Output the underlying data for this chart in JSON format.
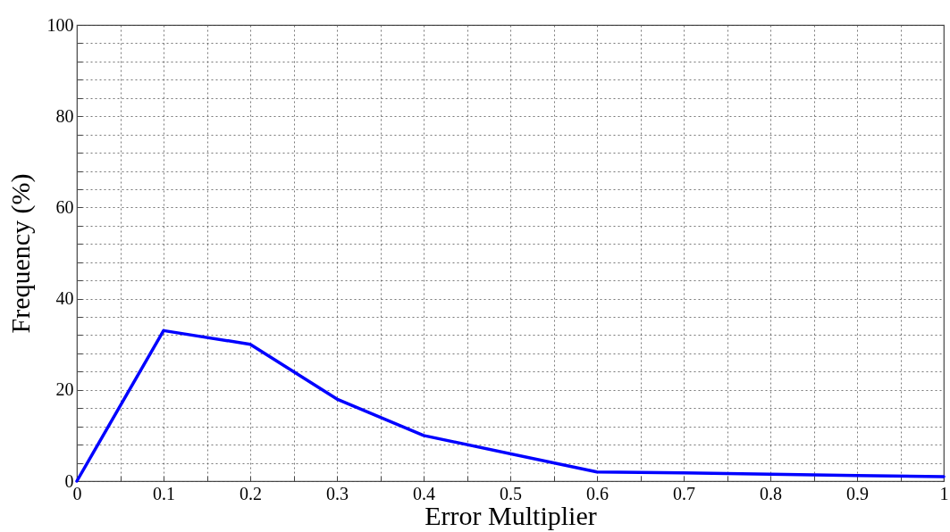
{
  "chart_data": {
    "type": "line",
    "xlabel": "Error Multiplier",
    "ylabel": "Frequency (%)",
    "x": [
      0,
      0.1,
      0.2,
      0.3,
      0.4,
      0.6,
      0.7,
      0.8,
      0.9,
      1
    ],
    "series": [
      {
        "color": "#0000ff",
        "values": [
          0,
          33,
          30,
          18,
          10,
          2,
          1.8,
          1.5,
          1.2,
          1
        ]
      }
    ],
    "xlim": [
      0,
      1
    ],
    "ylim": [
      0,
      100
    ],
    "xticks": [
      0,
      {
        "value": 0.05,
        "label": null
      },
      0.1,
      {
        "value": 0.15,
        "label": null
      },
      0.2,
      {
        "value": 0.25,
        "label": null
      },
      0.3,
      {
        "value": 0.35,
        "label": null
      },
      0.4,
      {
        "value": 0.45,
        "label": null
      },
      0.5,
      {
        "value": 0.55,
        "label": null
      },
      0.6,
      {
        "value": 0.65,
        "label": null
      },
      0.7,
      {
        "value": 0.75,
        "label": null
      },
      0.8,
      {
        "value": 0.85,
        "label": null
      },
      0.9,
      {
        "value": 0.95,
        "label": null
      },
      1
    ],
    "yticks": [
      0,
      {
        "value": 4,
        "label": null
      },
      {
        "value": 8,
        "label": null
      },
      {
        "value": 12,
        "label": null
      },
      {
        "value": 16,
        "label": null
      },
      20,
      {
        "value": 24,
        "label": null
      },
      {
        "value": 28,
        "label": null
      },
      {
        "value": 32,
        "label": null
      },
      {
        "value": 36,
        "label": null
      },
      40,
      {
        "value": 44,
        "label": null
      },
      {
        "value": 48,
        "label": null
      },
      {
        "value": 52,
        "label": null
      },
      {
        "value": 56,
        "label": null
      },
      60,
      {
        "value": 64,
        "label": null
      },
      {
        "value": 68,
        "label": null
      },
      {
        "value": 72,
        "label": null
      },
      {
        "value": 76,
        "label": null
      },
      80,
      {
        "value": 84,
        "label": null
      },
      {
        "value": 88,
        "label": null
      },
      {
        "value": 92,
        "label": null
      },
      {
        "value": 96,
        "label": null
      },
      100
    ],
    "grid": true,
    "marker": "none",
    "line_style": "solid"
  }
}
